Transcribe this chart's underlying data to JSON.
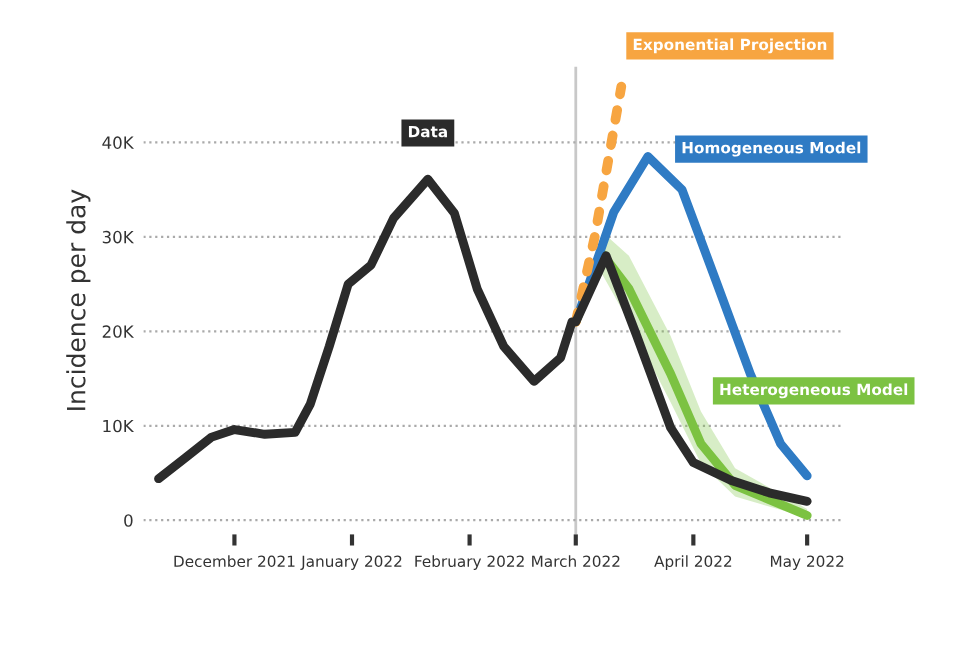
{
  "chart_data": {
    "type": "line",
    "ylabel": "Incidence per day",
    "xlim": [
      "2021-11-07",
      "2022-05-10"
    ],
    "ylim": [
      -1.5,
      48
    ],
    "xticks": [
      {
        "value": "2021-12-01",
        "label": "December 2021"
      },
      {
        "value": "2022-01-01",
        "label": "January 2022"
      },
      {
        "value": "2022-02-01",
        "label": "February 2022"
      },
      {
        "value": "2022-03-01",
        "label": "March 2022"
      },
      {
        "value": "2022-04-01",
        "label": "April 2022"
      },
      {
        "value": "2022-05-01",
        "label": "May 2022"
      }
    ],
    "yticks": [
      {
        "value": 0,
        "label": "0"
      },
      {
        "value": 10,
        "label": "10K"
      },
      {
        "value": 20,
        "label": "20K"
      },
      {
        "value": 30,
        "label": "30K"
      },
      {
        "value": 40,
        "label": "40K"
      }
    ],
    "grid": "y",
    "legend": false,
    "marker": "none",
    "ref_lines": [
      {
        "axis": "x",
        "value": "2022-03-01",
        "color": "#c8c8c8",
        "line_style": "solid"
      }
    ],
    "series": [
      {
        "name": "Data",
        "color": "#2b2b2b",
        "line_style": "solid",
        "x": [
          "2021-11-11",
          "2021-11-18",
          "2021-11-25",
          "2021-12-01",
          "2021-12-09",
          "2021-12-17",
          "2021-12-21",
          "2021-12-26",
          "2021-12-31",
          "2022-01-06",
          "2022-01-12",
          "2022-01-21",
          "2022-01-28",
          "2022-02-03",
          "2022-02-10",
          "2022-02-18",
          "2022-02-25",
          "2022-02-28",
          "2022-03-01",
          "2022-03-09",
          "2022-03-17",
          "2022-03-26",
          "2022-04-01",
          "2022-04-11",
          "2022-04-21",
          "2022-05-01"
        ],
        "values": [
          4.4,
          6.6,
          8.8,
          9.6,
          9.1,
          9.3,
          12.3,
          18.4,
          25,
          27,
          32,
          36.1,
          32.5,
          24.5,
          18.4,
          14.7,
          17.2,
          21,
          21,
          28,
          19.6,
          9.8,
          6.1,
          4.2,
          2.9,
          2.0
        ]
      },
      {
        "name": "Exponential Projection",
        "color": "#f7a541",
        "line_style": "dotted",
        "x": [
          "2022-03-01",
          "2022-03-06",
          "2022-03-13"
        ],
        "values": [
          21,
          30,
          45.9
        ]
      },
      {
        "name": "Homogeneous Model",
        "color": "#2f7bc4",
        "line_style": "solid",
        "x": [
          "2022-03-01",
          "2022-03-11",
          "2022-03-20",
          "2022-03-29",
          "2022-04-07",
          "2022-04-16",
          "2022-04-24",
          "2022-05-01"
        ],
        "values": [
          21,
          32.6,
          38.5,
          35,
          25.3,
          15.5,
          8.1,
          4.7
        ]
      },
      {
        "name": "Heterogeneous Model",
        "color": "#7cc242",
        "line_style": "solid",
        "x": [
          "2022-03-01",
          "2022-03-08",
          "2022-03-15",
          "2022-03-26",
          "2022-04-03",
          "2022-04-12",
          "2022-05-01"
        ],
        "values": [
          21,
          28.2,
          24.5,
          15.5,
          8.1,
          3.7,
          0.5
        ],
        "lower": [
          21,
          26,
          21,
          12.5,
          6,
          2.5,
          0.3
        ],
        "upper": [
          21,
          30.5,
          28,
          19.5,
          11.5,
          5.5,
          1.2
        ]
      }
    ]
  }
}
